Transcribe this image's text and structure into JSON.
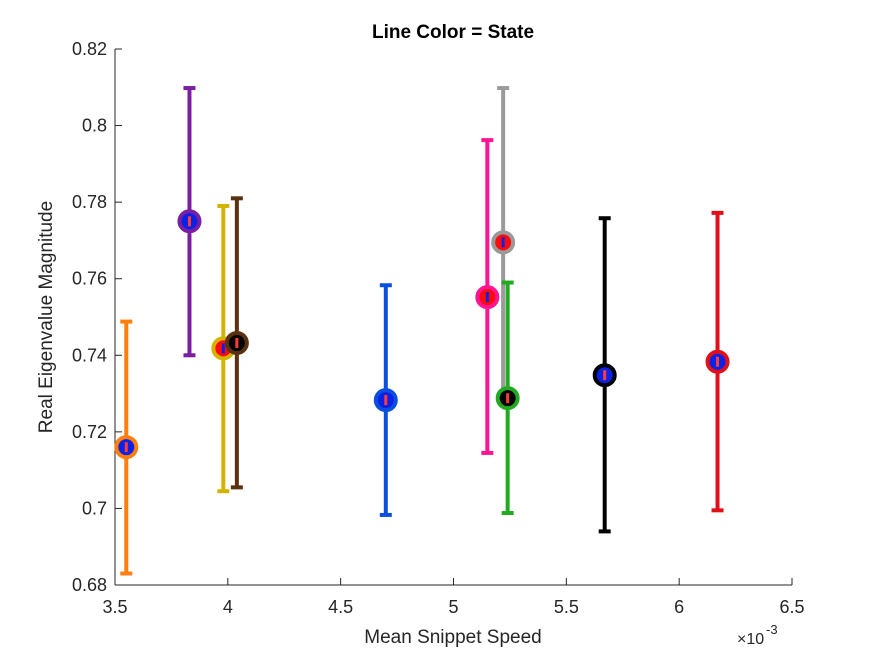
{
  "chart_data": {
    "type": "scatter",
    "title": "Line Color = State",
    "xlabel": "Mean Snippet Speed",
    "ylabel": "Real Eigenvalue Magnitude",
    "x_exponent_label": "×10",
    "x_exponent_power": "-3",
    "xlim": [
      3.5,
      6.5
    ],
    "ylim": [
      0.68,
      0.82
    ],
    "x_tick_values": [
      3.5,
      4,
      4.5,
      5,
      5.5,
      6,
      6.5
    ],
    "x_tick_labels": [
      "3.5",
      "4",
      "4.5",
      "5",
      "5.5",
      "6",
      "6.5"
    ],
    "y_tick_values": [
      0.68,
      0.7,
      0.72,
      0.74,
      0.76,
      0.78,
      0.8,
      0.82
    ],
    "y_tick_labels": [
      "0.68",
      "0.7",
      "0.72",
      "0.74",
      "0.76",
      "0.78",
      "0.8",
      "0.82"
    ],
    "grid": false,
    "error_bars": true,
    "points": [
      {
        "x": 3.55,
        "y": 0.716,
        "lower": 0.683,
        "upper": 0.7488,
        "line_color": "#ff7f0e",
        "marker_color": "#0a22e6",
        "tick_color": "#ff3b3b"
      },
      {
        "x": 3.83,
        "y": 0.775,
        "lower": 0.74,
        "upper": 0.8098,
        "line_color": "#7b1fa2",
        "marker_color": "#0a22e6",
        "tick_color": "#ff3b3b"
      },
      {
        "x": 3.98,
        "y": 0.7418,
        "lower": 0.7045,
        "upper": 0.779,
        "line_color": "#d4b400",
        "marker_color": "#ff0a0a",
        "tick_color": "#0a22e6"
      },
      {
        "x": 4.04,
        "y": 0.7432,
        "lower": 0.7055,
        "upper": 0.781,
        "line_color": "#5a3210",
        "marker_color": "#000000",
        "tick_color": "#ff3b3b"
      },
      {
        "x": 4.7,
        "y": 0.7283,
        "lower": 0.6983,
        "upper": 0.7583,
        "line_color": "#0a4fe0",
        "marker_color": "#0a22e6",
        "tick_color": "#ff3b3b"
      },
      {
        "x": 5.15,
        "y": 0.7552,
        "lower": 0.7145,
        "upper": 0.7962,
        "line_color": "#ff1493",
        "marker_color": "#ff0a0a",
        "tick_color": "#0a22e6"
      },
      {
        "x": 5.22,
        "y": 0.7695,
        "lower": 0.7293,
        "upper": 0.8098,
        "line_color": "#9a9a9a",
        "marker_color": "#ff0a0a",
        "tick_color": "#0a22e6"
      },
      {
        "x": 5.24,
        "y": 0.7288,
        "lower": 0.6988,
        "upper": 0.759,
        "line_color": "#22aa22",
        "marker_color": "#000000",
        "tick_color": "#ff3b3b"
      },
      {
        "x": 5.67,
        "y": 0.7348,
        "lower": 0.694,
        "upper": 0.7758,
        "line_color": "#000000",
        "marker_color": "#0a22e6",
        "tick_color": "#ff3b3b"
      },
      {
        "x": 6.17,
        "y": 0.7383,
        "lower": 0.6995,
        "upper": 0.7772,
        "line_color": "#e0101a",
        "marker_color": "#0a22e6",
        "tick_color": "#ff3b3b"
      }
    ]
  }
}
